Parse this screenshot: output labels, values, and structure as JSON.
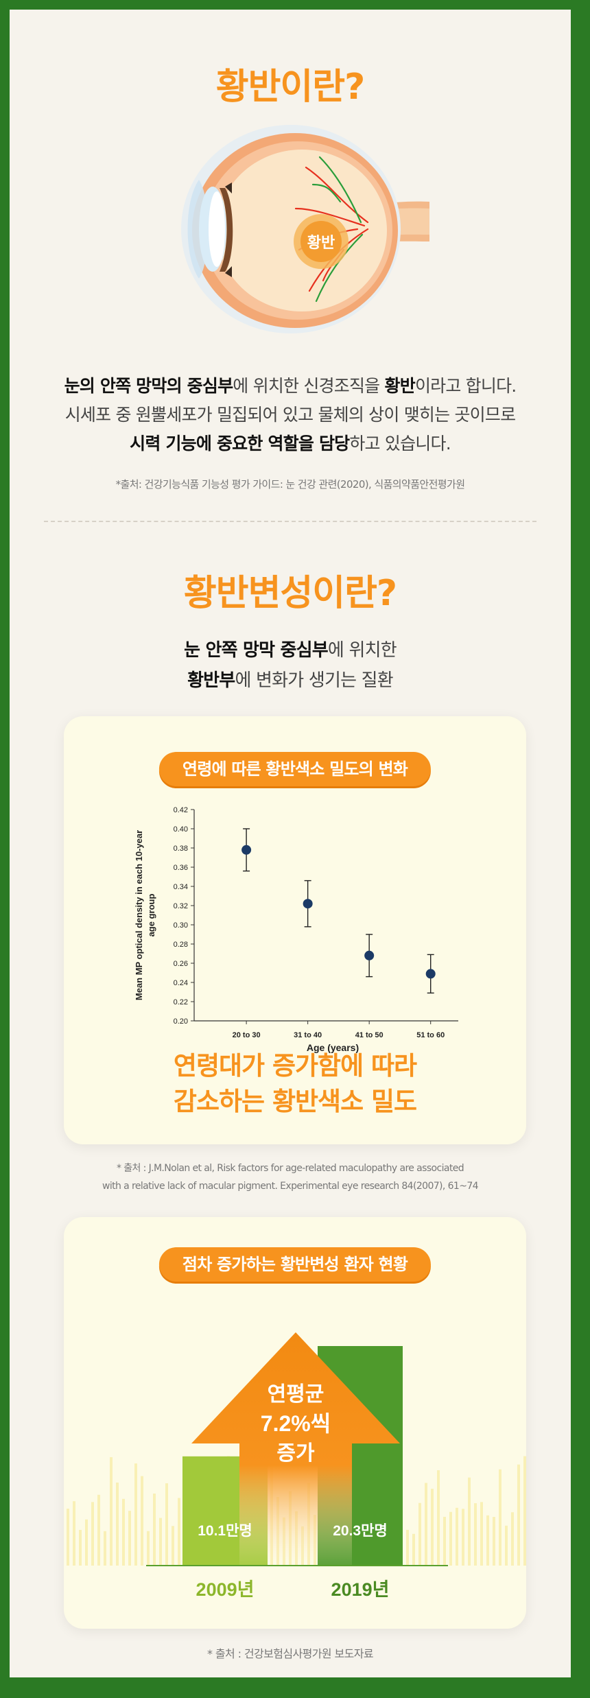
{
  "section1": {
    "title": "황반이란?",
    "eye_label": "황반",
    "intro": {
      "line1": {
        "b1": "눈의 안쪽 망막의 중심부",
        "t1": "에 위치한 신경조직을 ",
        "b2": "황반",
        "t2": "이라고 합니다."
      },
      "line2": "시세포 중 원뿔세포가 밀집되어 있고 물체의 상이 맺히는 곳이므로",
      "line3": {
        "b1": "시력 기능에 중요한 역할을 담당",
        "t1": "하고 있습니다."
      }
    },
    "source": "*출처: 건강기능식품 기능성 평가 가이드: 눈 건강 관련(2020), 식품의약품안전평가원"
  },
  "section2": {
    "title": "황반변성이란?",
    "subtitle": {
      "line1": {
        "b1": "눈 안쪽 망막 중심부",
        "t1": "에 위치한"
      },
      "line2": {
        "b1": "황반부",
        "t1": "에 변화가 생기는 질환"
      }
    }
  },
  "card1": {
    "pill": "연령에 따른 황반색소 밀도의 변화",
    "caption_line1": "연령대가 증가함에 따라",
    "caption_line2": "감소하는 황반색소 밀도",
    "source_line1": "* 출처 : J.M.Nolan et al, Risk factors for age-related maculopathy are associated",
    "source_line2": "with a relative lack of macular pigment. Experimental eye research 84(2007), 61~74"
  },
  "chart_data": {
    "type": "scatter",
    "title": "",
    "xlabel": "Age (years)",
    "ylabel_line1": "Mean MP optical density in each 10-year",
    "ylabel_line2": "age group",
    "categories": [
      "20 to 30",
      "31 to 40",
      "41 to 50",
      "51 to 60"
    ],
    "values": [
      0.378,
      0.322,
      0.268,
      0.249
    ],
    "errors": [
      0.022,
      0.024,
      0.022,
      0.02
    ],
    "ylim": [
      0.2,
      0.42
    ],
    "yticks": [
      "0.20",
      "0.22",
      "0.24",
      "0.26",
      "0.28",
      "0.30",
      "0.32",
      "0.34",
      "0.36",
      "0.38",
      "0.40",
      "0.42"
    ],
    "grid": false,
    "marker_color": "#1b3a66"
  },
  "card2": {
    "pill": "점차 증가하는 황반변성 환자 현황",
    "arrow_line1": "연평균",
    "arrow_line2": "7.2%씩",
    "arrow_line3": "증가",
    "bars": [
      {
        "year": "2009년",
        "value_label": "10.1만명",
        "value": 10.1,
        "color": "#a2c93a",
        "year_color": "#8cb62b"
      },
      {
        "year": "2019년",
        "value_label": "20.3만명",
        "value": 20.3,
        "color": "#4f9a2c",
        "year_color": "#4a8a22"
      }
    ],
    "accent": "#f7931e"
  },
  "footer_source": "* 출처 : 건강보험심사평가원 보도자료"
}
